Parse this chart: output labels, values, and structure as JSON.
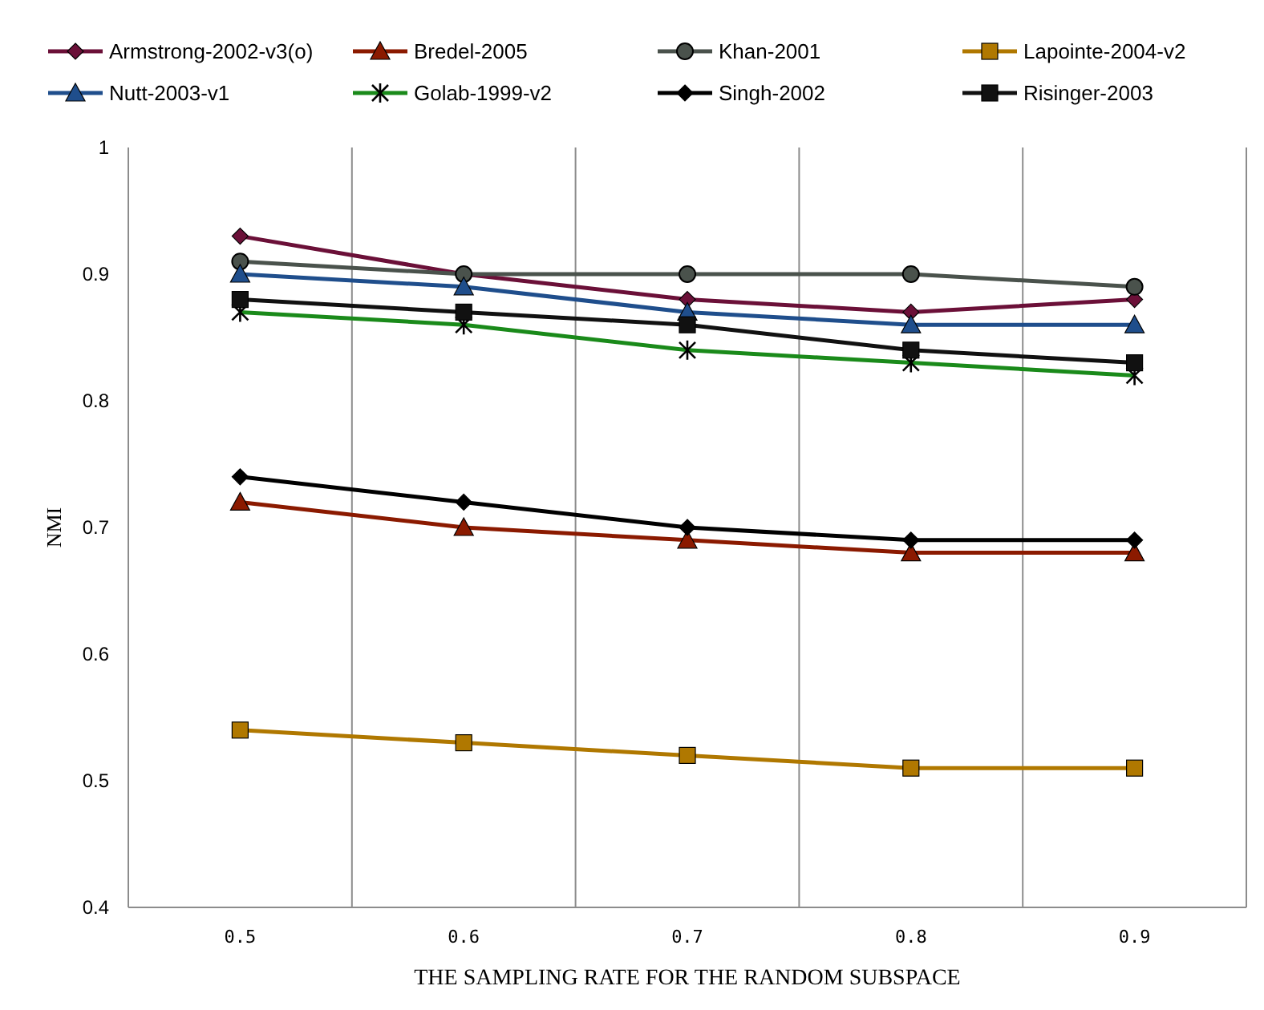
{
  "chart_data": {
    "type": "line",
    "xlabel": "THE SAMPLING RATE FOR THE RANDOM SUBSPACE",
    "ylabel": "NMI",
    "categories": [
      "0.5",
      "0.6",
      "0.7",
      "0.8",
      "0.9"
    ],
    "ylim": [
      0.4,
      1
    ],
    "yticks": [
      0.4,
      0.5,
      0.6,
      0.7,
      0.8,
      0.9,
      1
    ],
    "grid": "x",
    "legend": "top",
    "series": [
      {
        "name": "Armstrong-2002-v3(o)",
        "color": "#6b1038",
        "marker": "diamond",
        "values": [
          0.93,
          0.9,
          0.88,
          0.87,
          0.88
        ]
      },
      {
        "name": "Bredel-2005",
        "color": "#8b1a00",
        "marker": "triangle",
        "values": [
          0.72,
          0.7,
          0.69,
          0.68,
          0.68
        ]
      },
      {
        "name": "Khan-2001",
        "color": "#4a524c",
        "marker": "circle",
        "values": [
          0.91,
          0.9,
          0.9,
          0.9,
          0.89
        ]
      },
      {
        "name": "Lapointe-2004-v2",
        "color": "#b07800",
        "marker": "square",
        "values": [
          0.54,
          0.53,
          0.52,
          0.51,
          0.51
        ]
      },
      {
        "name": "Nutt-2003-v1",
        "color": "#1f4e8c",
        "marker": "triangle",
        "values": [
          0.9,
          0.89,
          0.87,
          0.86,
          0.86
        ]
      },
      {
        "name": "Golab-1999-v2",
        "color": "#1a8a1a",
        "marker": "cross",
        "values": [
          0.87,
          0.86,
          0.84,
          0.83,
          0.82
        ]
      },
      {
        "name": "Singh-2002",
        "color": "#000000",
        "marker": "diamond",
        "values": [
          0.74,
          0.72,
          0.7,
          0.69,
          0.69
        ]
      },
      {
        "name": "Risinger-2003",
        "color": "#111111",
        "marker": "square",
        "values": [
          0.88,
          0.87,
          0.86,
          0.84,
          0.83
        ]
      }
    ]
  }
}
